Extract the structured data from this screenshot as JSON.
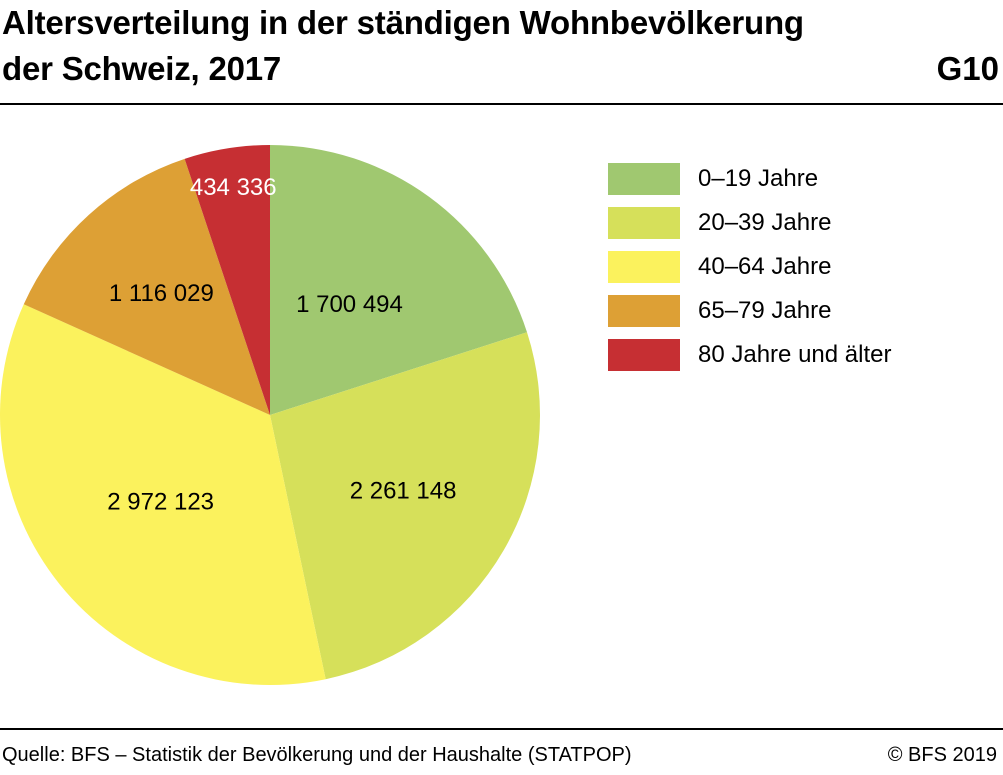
{
  "header": {
    "title_line1": "Altersverteilung in der ständigen Wohnbevölkerung",
    "title_line2": "der Schweiz, 2017",
    "chart_id": "G10"
  },
  "footer": {
    "source": "Quelle: BFS – Statistik der Bevölkerung und der Haushalte (STATPOP)",
    "copyright": "© BFS 2019"
  },
  "chart_data": {
    "type": "pie",
    "title": "Altersverteilung in der ständigen Wohnbevölkerung der Schweiz, 2017",
    "categories": [
      "0–19 Jahre",
      "20–39 Jahre",
      "40–64 Jahre",
      "65–79 Jahre",
      "80 Jahre und älter"
    ],
    "values": [
      1700494,
      2261148,
      2972123,
      1116029,
      434336
    ],
    "value_labels": [
      "1 700 494",
      "2 261 148",
      "2 972 123",
      "1 116 029",
      "434 336"
    ],
    "colors": [
      "#a0c870",
      "#d6e05a",
      "#fbf25d",
      "#dda035",
      "#c62f33"
    ],
    "label_colors": [
      "#000000",
      "#000000",
      "#000000",
      "#000000",
      "#ffffff"
    ],
    "start": "12 o'clock",
    "direction": "clockwise",
    "legend_position": "right"
  }
}
